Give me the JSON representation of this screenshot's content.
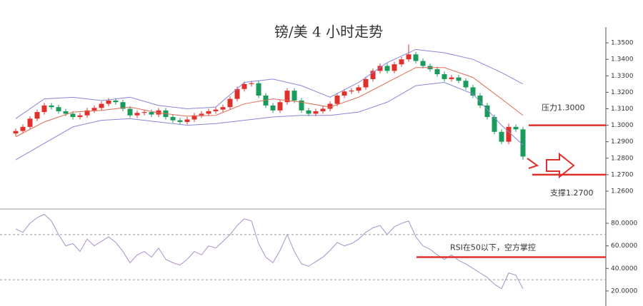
{
  "chart_data": [
    {
      "type": "candlestick",
      "title": "镑/美 4 小时走势",
      "open": [
        1.295,
        1.2965,
        1.299,
        1.304,
        1.308,
        1.312,
        1.311,
        1.3085,
        1.307,
        1.305,
        1.306,
        1.309,
        1.3105,
        1.313,
        1.315,
        1.314,
        1.31,
        1.306,
        1.3075,
        1.308,
        1.3065,
        1.309,
        1.305,
        1.303,
        1.302,
        1.3035,
        1.306,
        1.307,
        1.3085,
        1.3095,
        1.311,
        1.316,
        1.322,
        1.325,
        1.3255,
        1.318,
        1.312,
        1.309,
        1.314,
        1.321,
        1.315,
        1.309,
        1.307,
        1.3085,
        1.31,
        1.313,
        1.318,
        1.3205,
        1.321,
        1.323,
        1.328,
        1.333,
        1.336,
        1.333,
        1.337,
        1.34,
        1.343,
        1.339,
        1.336,
        1.334,
        1.331,
        1.328,
        1.329,
        1.327,
        1.323,
        1.318,
        1.312,
        1.305,
        1.296,
        1.29,
        1.299,
        1.2975
      ],
      "high": [
        1.298,
        1.3005,
        1.3055,
        1.3095,
        1.3135,
        1.3135,
        1.3125,
        1.31,
        1.3085,
        1.3075,
        1.3105,
        1.312,
        1.3145,
        1.3165,
        1.3165,
        1.3155,
        1.3115,
        1.309,
        1.3095,
        1.3095,
        1.3105,
        1.3105,
        1.3065,
        1.3045,
        1.305,
        1.3075,
        1.3085,
        1.31,
        1.311,
        1.3125,
        1.3175,
        1.3235,
        1.3265,
        1.327,
        1.327,
        1.3195,
        1.3135,
        1.3155,
        1.3225,
        1.3225,
        1.3165,
        1.3105,
        1.31,
        1.3115,
        1.3145,
        1.3195,
        1.322,
        1.3225,
        1.3245,
        1.3295,
        1.3345,
        1.3375,
        1.3375,
        1.3385,
        1.3415,
        1.349,
        1.3445,
        1.3405,
        1.3375,
        1.3355,
        1.3325,
        1.3305,
        1.3305,
        1.3285,
        1.3245,
        1.3195,
        1.3135,
        1.3065,
        1.2975,
        1.301,
        1.3005,
        1.299
      ],
      "low": [
        1.2935,
        1.295,
        1.2975,
        1.3025,
        1.3065,
        1.3095,
        1.307,
        1.3055,
        1.3035,
        1.3035,
        1.3045,
        1.3075,
        1.309,
        1.3115,
        1.3125,
        1.3085,
        1.3045,
        1.3045,
        1.306,
        1.305,
        1.305,
        1.3035,
        1.3015,
        1.3005,
        1.3005,
        1.302,
        1.3045,
        1.3055,
        1.307,
        1.308,
        1.3095,
        1.3145,
        1.3205,
        1.3235,
        1.3165,
        1.3105,
        1.3075,
        1.3075,
        1.3125,
        1.3135,
        1.3075,
        1.3055,
        1.3055,
        1.307,
        1.3085,
        1.3115,
        1.3165,
        1.319,
        1.3195,
        1.3215,
        1.3265,
        1.3315,
        1.3315,
        1.3315,
        1.3355,
        1.3385,
        1.3375,
        1.3345,
        1.3325,
        1.3295,
        1.3265,
        1.3265,
        1.3255,
        1.3215,
        1.3165,
        1.3105,
        1.3035,
        1.2945,
        1.2885,
        1.2885,
        1.296,
        1.279
      ],
      "close": [
        1.2965,
        1.299,
        1.304,
        1.308,
        1.312,
        1.311,
        1.3085,
        1.307,
        1.305,
        1.306,
        1.309,
        1.3105,
        1.313,
        1.315,
        1.314,
        1.31,
        1.306,
        1.3075,
        1.308,
        1.3065,
        1.309,
        1.305,
        1.303,
        1.302,
        1.3035,
        1.306,
        1.307,
        1.3085,
        1.3095,
        1.311,
        1.316,
        1.322,
        1.325,
        1.3255,
        1.318,
        1.312,
        1.309,
        1.314,
        1.321,
        1.315,
        1.309,
        1.307,
        1.3085,
        1.31,
        1.313,
        1.318,
        1.3205,
        1.321,
        1.323,
        1.328,
        1.333,
        1.336,
        1.333,
        1.337,
        1.34,
        1.343,
        1.339,
        1.336,
        1.334,
        1.331,
        1.328,
        1.329,
        1.327,
        1.323,
        1.318,
        1.312,
        1.305,
        1.296,
        1.29,
        1.299,
        1.2975,
        1.281
      ],
      "up_color": "#e0302c",
      "down_color": "#1a9b5b",
      "band_x": [
        0,
        4,
        8,
        12,
        16,
        20,
        24,
        28,
        32,
        36,
        40,
        44,
        48,
        52,
        56,
        60,
        64,
        68,
        71
      ],
      "bands": [
        {
          "color": "#8a86d8",
          "values": [
            1.304,
            1.316,
            1.317,
            1.315,
            1.317,
            1.312,
            1.31,
            1.311,
            1.326,
            1.328,
            1.324,
            1.317,
            1.326,
            1.338,
            1.346,
            1.344,
            1.34,
            1.332,
            1.325
          ]
        },
        {
          "color": "#e06a55",
          "values": [
            1.293,
            1.302,
            1.308,
            1.309,
            1.311,
            1.3075,
            1.3055,
            1.306,
            1.313,
            1.316,
            1.314,
            1.311,
            1.317,
            1.326,
            1.335,
            1.335,
            1.329,
            1.316,
            1.306
          ]
        },
        {
          "color": "#8a86d8",
          "values": [
            1.279,
            1.289,
            1.299,
            1.303,
            1.304,
            1.302,
            1.3,
            1.301,
            1.303,
            1.305,
            1.306,
            1.306,
            1.308,
            1.314,
            1.324,
            1.326,
            1.319,
            1.3,
            1.288
          ]
        }
      ],
      "ylim": [
        1.2496,
        1.3587
      ],
      "yticks": [
        {
          "value": 1.26,
          "label": "1.2600"
        },
        {
          "value": 1.27,
          "label": "1.2700"
        },
        {
          "value": 1.28,
          "label": "1.2800"
        },
        {
          "value": 1.29,
          "label": "1.2900"
        },
        {
          "value": 1.3,
          "label": "1.3000"
        },
        {
          "value": 1.31,
          "label": "1.3100"
        },
        {
          "value": 1.32,
          "label": "1.3200"
        },
        {
          "value": 1.33,
          "label": "1.3300"
        },
        {
          "value": 1.34,
          "label": "1.3400"
        },
        {
          "value": 1.35,
          "label": "1.3500"
        }
      ],
      "annotations": [
        {
          "text": "压力1.3000",
          "value": 1.3,
          "color": "#e0302c"
        },
        {
          "text": "支撑1.2700",
          "value": 1.27,
          "color": "#e0302c"
        }
      ]
    },
    {
      "type": "line",
      "series": [
        {
          "color": "#a98fc9",
          "values": [
            75,
            72,
            80,
            85,
            88,
            82,
            70,
            60,
            62,
            55,
            66,
            60,
            64,
            68,
            63,
            55,
            45,
            52,
            55,
            50,
            58,
            48,
            45,
            43,
            48,
            55,
            52,
            60,
            58,
            64,
            70,
            78,
            84,
            82,
            62,
            50,
            45,
            56,
            70,
            55,
            44,
            42,
            46,
            50,
            56,
            63,
            60,
            62,
            66,
            72,
            76,
            78,
            70,
            77,
            80,
            82,
            68,
            60,
            57,
            52,
            48,
            52,
            47,
            44,
            40,
            36,
            32,
            26,
            22,
            36,
            34,
            22
          ]
        }
      ],
      "ylim": [
        9.2,
        91.4
      ],
      "yticks": [
        {
          "value": 20,
          "label": "20.0000"
        },
        {
          "value": 40,
          "label": "40.0000"
        },
        {
          "value": 60,
          "label": "60.0000"
        },
        {
          "value": 80,
          "label": "80.0000"
        }
      ],
      "ref_lines": [
        30,
        70
      ],
      "annotations": [
        {
          "text": "RSI在50以下，空方掌控",
          "value": 50,
          "color": "#e0302c"
        }
      ]
    }
  ]
}
